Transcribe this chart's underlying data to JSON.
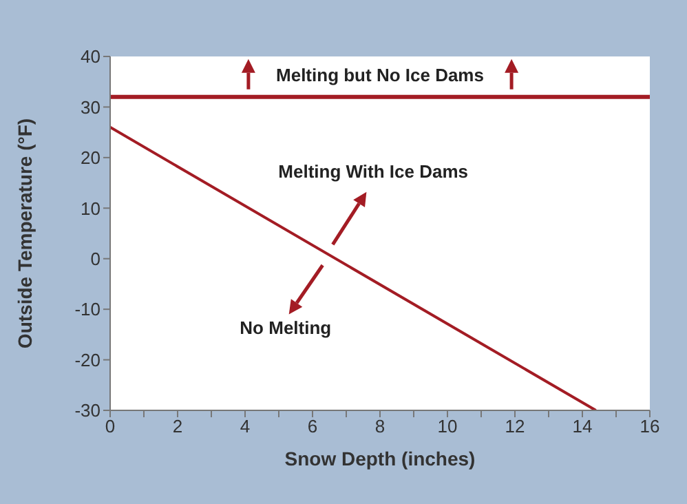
{
  "chart_data": {
    "type": "line",
    "xlabel": "Snow Depth (inches)",
    "ylabel": "Outside Temperature (°F)",
    "series": [
      {
        "color": "#a31c24",
        "x": [
          0,
          14.4
        ],
        "values": [
          26,
          -30
        ]
      }
    ],
    "xlim": [
      0,
      16
    ],
    "xticks": [
      0,
      {
        "value": 1,
        "label": null
      },
      2,
      {
        "value": 3,
        "label": null
      },
      4,
      {
        "value": 5,
        "label": null
      },
      6,
      {
        "value": 7,
        "label": null
      },
      8,
      {
        "value": 9,
        "label": null
      },
      10,
      {
        "value": 11,
        "label": null
      },
      12,
      {
        "value": 13,
        "label": null
      },
      14,
      {
        "value": 15,
        "label": null
      },
      16
    ],
    "ylim": [
      -30,
      40
    ],
    "yticks": [
      -30,
      -20,
      -10,
      0,
      10,
      20,
      30,
      40
    ],
    "ref_lines": [
      {
        "axis": "y",
        "value": 32,
        "color": "#a31c24"
      }
    ],
    "annotations": [
      "Melting but No Ice Dams",
      "Melting With Ice Dams",
      "No Melting"
    ],
    "grid": false,
    "legend": false,
    "marker": "none",
    "line_style": "solid"
  }
}
